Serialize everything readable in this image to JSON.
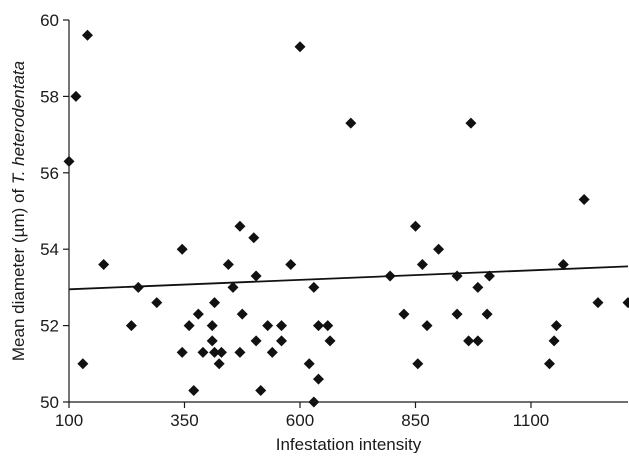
{
  "chart_data": {
    "type": "scatter",
    "title": "",
    "xlabel": "Infestation intensity",
    "ylabel_prefix": "Mean diameter (µm) of ",
    "ylabel_species": "T. heterodentata",
    "xlim": [
      100,
      1310
    ],
    "ylim": [
      50,
      60
    ],
    "xticks": [
      100,
      350,
      600,
      850,
      1100
    ],
    "yticks": [
      50,
      52,
      54,
      56,
      58,
      60
    ],
    "grid": false,
    "legend": "none",
    "marker": "diamond",
    "marker_color": "#111111",
    "points": [
      [
        100,
        56.3
      ],
      [
        115,
        58.0
      ],
      [
        140,
        59.6
      ],
      [
        130,
        51.0
      ],
      [
        175,
        53.6
      ],
      [
        235,
        52.0
      ],
      [
        250,
        53.0
      ],
      [
        290,
        52.6
      ],
      [
        345,
        54.0
      ],
      [
        345,
        51.3
      ],
      [
        360,
        52.0
      ],
      [
        370,
        50.3
      ],
      [
        380,
        52.3
      ],
      [
        390,
        51.3
      ],
      [
        410,
        51.6
      ],
      [
        410,
        52.0
      ],
      [
        415,
        52.6
      ],
      [
        415,
        51.3
      ],
      [
        425,
        51.0
      ],
      [
        430,
        51.3
      ],
      [
        445,
        53.6
      ],
      [
        455,
        53.0
      ],
      [
        470,
        54.6
      ],
      [
        470,
        51.3
      ],
      [
        475,
        52.3
      ],
      [
        500,
        54.3
      ],
      [
        505,
        53.3
      ],
      [
        505,
        51.6
      ],
      [
        515,
        50.3
      ],
      [
        530,
        52.0
      ],
      [
        540,
        51.3
      ],
      [
        560,
        51.6
      ],
      [
        560,
        52.0
      ],
      [
        580,
        53.6
      ],
      [
        600,
        59.3
      ],
      [
        620,
        51.0
      ],
      [
        630,
        53.0
      ],
      [
        630,
        50.0
      ],
      [
        640,
        50.6
      ],
      [
        640,
        52.0
      ],
      [
        660,
        52.0
      ],
      [
        665,
        51.6
      ],
      [
        710,
        57.3
      ],
      [
        795,
        53.3
      ],
      [
        825,
        52.3
      ],
      [
        850,
        54.6
      ],
      [
        855,
        51.0
      ],
      [
        865,
        53.6
      ],
      [
        875,
        52.0
      ],
      [
        900,
        54.0
      ],
      [
        940,
        53.3
      ],
      [
        940,
        52.3
      ],
      [
        965,
        51.6
      ],
      [
        970,
        57.3
      ],
      [
        985,
        53.0
      ],
      [
        985,
        51.6
      ],
      [
        1005,
        52.3
      ],
      [
        1010,
        53.3
      ],
      [
        1140,
        51.0
      ],
      [
        1150,
        51.6
      ],
      [
        1155,
        52.0
      ],
      [
        1170,
        53.6
      ],
      [
        1215,
        55.3
      ],
      [
        1245,
        52.6
      ],
      [
        1310,
        52.6
      ]
    ],
    "trendline": {
      "x": [
        100,
        1310
      ],
      "y": [
        52.95,
        53.55
      ]
    }
  }
}
